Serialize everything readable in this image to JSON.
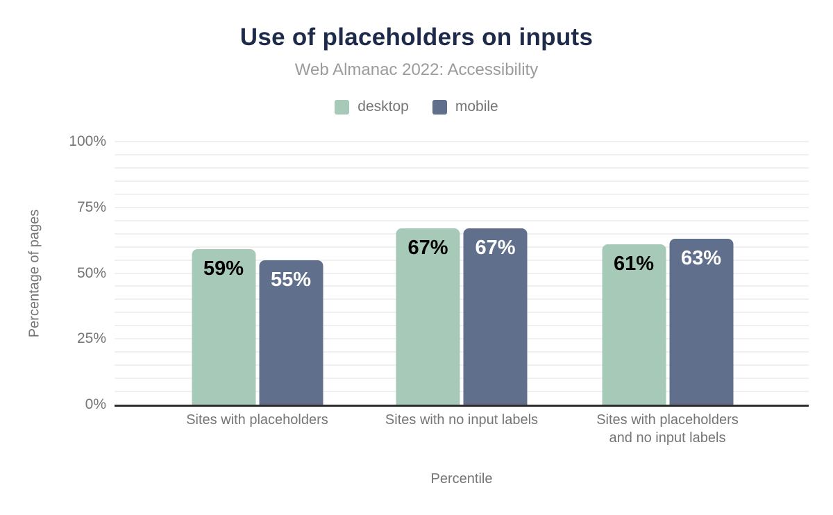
{
  "chart_data": {
    "type": "bar",
    "title": "Use of placeholders on inputs",
    "subtitle": "Web Almanac 2022: Accessibility",
    "xlabel": "Percentile",
    "ylabel": "Percentage of pages",
    "ylim": [
      0,
      100
    ],
    "yticks": [
      0,
      25,
      50,
      75,
      100
    ],
    "ytick_labels": [
      "0%",
      "25%",
      "50%",
      "75%",
      "100%"
    ],
    "minor_gridline_step_pct": 5,
    "grid": "horizontal-minor",
    "legend_position": "top-center",
    "categories": [
      "Sites with placeholders",
      "Sites with no input labels",
      "Sites with placeholders and no input labels"
    ],
    "category_lines": [
      [
        "Sites with placeholders"
      ],
      [
        "Sites with no input labels"
      ],
      [
        "Sites with placeholders",
        "and no input labels"
      ]
    ],
    "series": [
      {
        "name": "desktop",
        "values": [
          59,
          67,
          61
        ],
        "labels": [
          "59%",
          "67%",
          "61%"
        ],
        "color": "#a7c9b8",
        "label_color": "#000000"
      },
      {
        "name": "mobile",
        "values": [
          55,
          67,
          63
        ],
        "labels": [
          "55%",
          "67%",
          "63%"
        ],
        "color": "#60708c",
        "label_color": "#ffffff"
      }
    ]
  },
  "style": {
    "background": "#ffffff",
    "title_color": "#1e2a4a",
    "subtitle_color": "#9b9b9b",
    "axis_text_color": "#757575",
    "gridline_color": "#f0f0f0",
    "axis_line_color": "#2d2d2d"
  }
}
